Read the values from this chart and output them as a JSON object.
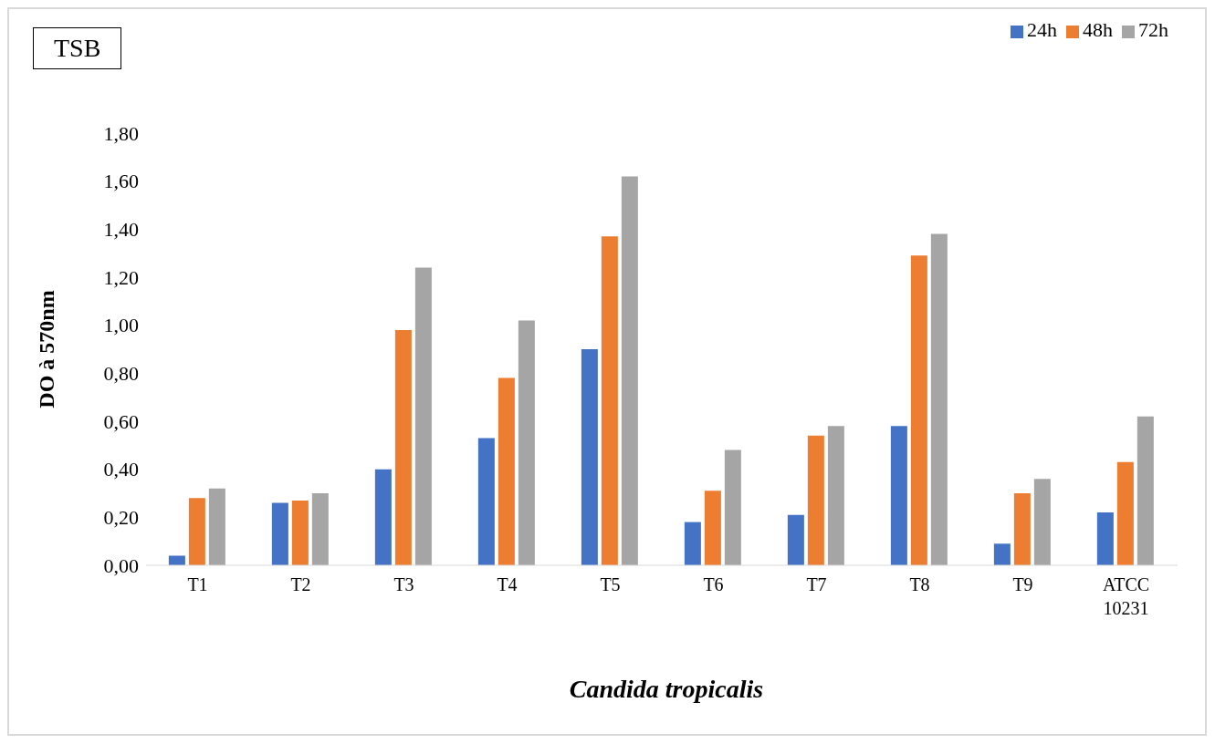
{
  "chart_data": {
    "type": "bar",
    "xlabel": "Candida tropicalis",
    "ylabel": "DO à 570nm",
    "annotations": [
      "TSB"
    ],
    "categories": [
      "T1",
      "T2",
      "T3",
      "T4",
      "T5",
      "T6",
      "T7",
      "T8",
      "T9",
      "ATCC 10231"
    ],
    "series": [
      {
        "name": "24h",
        "color": "#4472c4",
        "values": [
          0.04,
          0.26,
          0.4,
          0.53,
          0.9,
          0.18,
          0.21,
          0.58,
          0.09,
          0.22
        ]
      },
      {
        "name": "48h",
        "color": "#ed7d31",
        "values": [
          0.28,
          0.27,
          0.98,
          0.78,
          1.37,
          0.31,
          0.54,
          1.29,
          0.3,
          0.43
        ]
      },
      {
        "name": "72h",
        "color": "#a5a5a5",
        "values": [
          0.32,
          0.3,
          1.24,
          1.02,
          1.62,
          0.48,
          0.58,
          1.38,
          0.36,
          0.62
        ]
      }
    ],
    "ylim": [
      0,
      1.8
    ],
    "yticks": [
      {
        "value": 0,
        "label": "0,00"
      },
      {
        "value": 0.2,
        "label": "0,20"
      },
      {
        "value": 0.4,
        "label": "0,40"
      },
      {
        "value": 0.6,
        "label": "0,60"
      },
      {
        "value": 0.8,
        "label": "0,80"
      },
      {
        "value": 1.0,
        "label": "1,00"
      },
      {
        "value": 1.2,
        "label": "1,20"
      },
      {
        "value": 1.4,
        "label": "1,40"
      },
      {
        "value": 1.6,
        "label": "1,60"
      },
      {
        "value": 1.8,
        "label": "1,80"
      }
    ],
    "grid": false,
    "legend": "top right"
  }
}
